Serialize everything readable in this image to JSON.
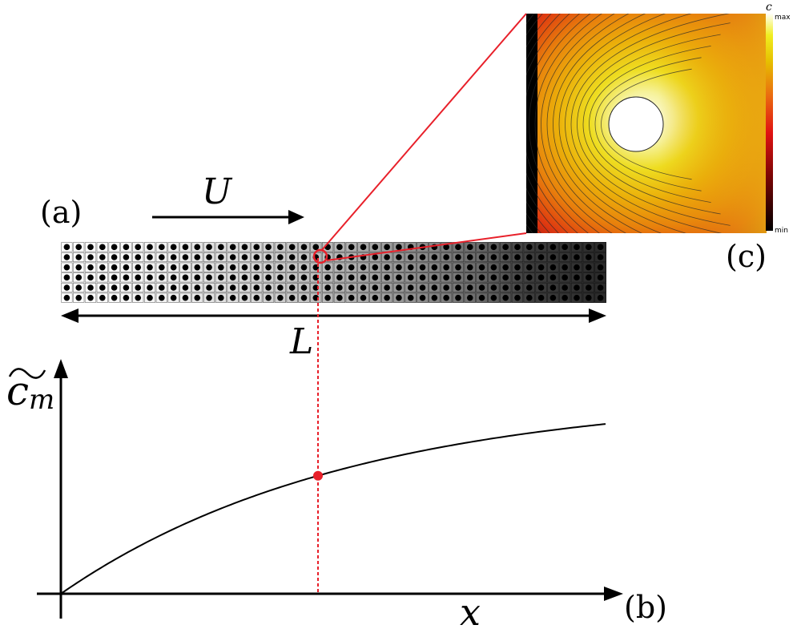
{
  "panels": {
    "a": {
      "label": "(a)"
    },
    "b": {
      "label": "(b)"
    },
    "c": {
      "label": "(c)"
    }
  },
  "flow": {
    "label": "U"
  },
  "length": {
    "label": "L"
  },
  "axes": {
    "x_label": "x",
    "y_label": "m"
  },
  "colorbar": {
    "title": "c",
    "max_label": "max",
    "min_label": "min"
  },
  "colors": {
    "highlight": "#e8202a",
    "curve": "#000000"
  },
  "porous_medium": {
    "rows": 6,
    "cols": 46
  }
}
